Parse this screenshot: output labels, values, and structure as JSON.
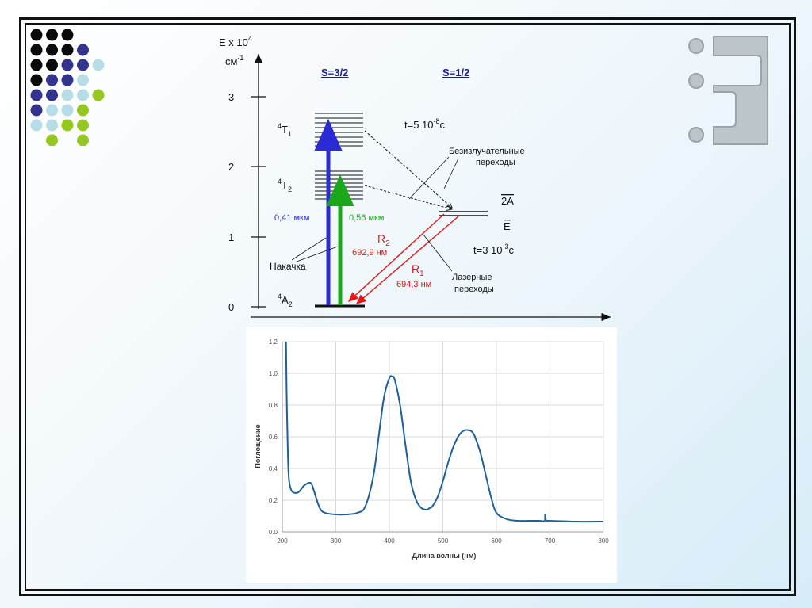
{
  "energy_diagram": {
    "axis_label_line1": "E x 10",
    "axis_label_exp": "4",
    "axis_label_line2": "см",
    "axis_label_line2_exp": "-1",
    "ticks": [
      "0",
      "1",
      "2",
      "3"
    ],
    "spin_left": "S=3/2",
    "spin_right": "S=1/2",
    "level_4T1_sup": "4",
    "level_4T1_main": "T",
    "level_4T1_sub": "1",
    "level_4T2_sup": "4",
    "level_4T2_main": "T",
    "level_4T2_sub": "2",
    "level_4A2_sup": "4",
    "level_4A2_main": "A",
    "level_4A2_sub": "2",
    "level_2A": "2A",
    "level_E": "E",
    "lifetime_top_main": "t=5 10",
    "lifetime_top_exp": "-8",
    "lifetime_top_unit": "c",
    "lifetime_bottom_main": "t=3 10",
    "lifetime_bottom_exp": "-3",
    "lifetime_bottom_unit": "c",
    "nonrad_line1": "Безизлучательные",
    "nonrad_line2": "переходы",
    "pump_blue": "0,41 мкм",
    "pump_green": "0,56 мкм",
    "pump_label": "Накачка",
    "r2_main": "R",
    "r2_sub": "2",
    "r2_wavelength": "692,9 нм",
    "r1_main": "R",
    "r1_sub": "1",
    "r1_wavelength": "694,3 нм",
    "laser_line1": "Лазерные",
    "laser_line2": "переходы",
    "colors": {
      "blue": "#2b2bd6",
      "green": "#1aa81a",
      "red": "#e01818",
      "spin_label": "#1a1aa8"
    }
  },
  "chart_data": {
    "type": "line",
    "title": "",
    "xlabel": "Длина волны (нм)",
    "ylabel": "Поглощение",
    "xlim": [
      200,
      800
    ],
    "ylim": [
      0,
      1.2
    ],
    "x_ticks": [
      "200",
      "300",
      "400",
      "500",
      "600",
      "700",
      "800"
    ],
    "y_ticks": [
      "0.0",
      "0.2",
      "0.4",
      "0.6",
      "0.8",
      "1.0",
      "1.2"
    ],
    "grid": true,
    "series": [
      {
        "color": "#1f5f9a",
        "x": [
          207,
          208,
          210,
          212,
          215,
          220,
          230,
          240,
          250,
          255,
          260,
          270,
          280,
          300,
          320,
          340,
          355,
          370,
          380,
          390,
          400,
          405,
          410,
          420,
          430,
          440,
          450,
          460,
          470,
          475,
          480,
          490,
          500,
          510,
          520,
          530,
          540,
          550,
          555,
          560,
          570,
          580,
          590,
          600,
          620,
          640,
          660,
          680,
          690,
          691,
          693,
          700,
          750,
          800
        ],
        "y": [
          1.2,
          0.9,
          0.55,
          0.35,
          0.28,
          0.25,
          0.25,
          0.29,
          0.31,
          0.3,
          0.25,
          0.15,
          0.12,
          0.11,
          0.11,
          0.12,
          0.16,
          0.35,
          0.6,
          0.85,
          0.97,
          0.98,
          0.96,
          0.8,
          0.55,
          0.32,
          0.2,
          0.15,
          0.14,
          0.15,
          0.16,
          0.22,
          0.32,
          0.44,
          0.54,
          0.61,
          0.64,
          0.64,
          0.63,
          0.6,
          0.5,
          0.36,
          0.22,
          0.12,
          0.08,
          0.07,
          0.07,
          0.07,
          0.07,
          0.11,
          0.07,
          0.07,
          0.065,
          0.065
        ]
      }
    ]
  },
  "decor": {
    "dot_colors": {
      "black": "#0a0a0a",
      "navy": "#33348f",
      "light": "#b9dde6",
      "lime": "#96c620"
    },
    "dot_rows": [
      [
        "black",
        "black",
        "black",
        "",
        ""
      ],
      [
        "black",
        "black",
        "black",
        "navy",
        ""
      ],
      [
        "black",
        "black",
        "navy",
        "navy",
        "light"
      ],
      [
        "black",
        "navy",
        "navy",
        "light",
        ""
      ],
      [
        "navy",
        "navy",
        "light",
        "light",
        "lime"
      ],
      [
        "navy",
        "light",
        "light",
        "lime",
        ""
      ],
      [
        "light",
        "light",
        "lime",
        "lime",
        ""
      ],
      [
        "",
        "lime",
        "",
        "lime",
        ""
      ]
    ],
    "logo_color": "#bcc5c9",
    "logo_stroke": "#9aa3a7"
  }
}
